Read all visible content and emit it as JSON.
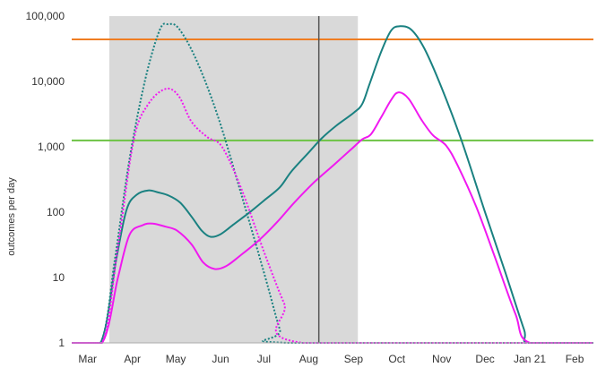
{
  "chart_data": {
    "type": "line",
    "title": "",
    "xlabel": "",
    "ylabel": "outcomes per day",
    "yscale": "log",
    "ylim": [
      1,
      100000
    ],
    "y_ticks": [
      {
        "value": 1,
        "label": "1"
      },
      {
        "value": 10,
        "label": "10"
      },
      {
        "value": 100,
        "label": "100"
      },
      {
        "value": 1000,
        "label": "1,000"
      },
      {
        "value": 10000,
        "label": "10,000"
      },
      {
        "value": 100000,
        "label": "100,000"
      }
    ],
    "x_ticks": [
      {
        "date": "2020-03-01",
        "label": "Mar"
      },
      {
        "date": "2020-04-01",
        "label": "Apr"
      },
      {
        "date": "2020-05-01",
        "label": "May"
      },
      {
        "date": "2020-06-01",
        "label": "Jun"
      },
      {
        "date": "2020-07-01",
        "label": "Jul"
      },
      {
        "date": "2020-08-01",
        "label": "Aug"
      },
      {
        "date": "2020-09-01",
        "label": "Sep"
      },
      {
        "date": "2020-10-01",
        "label": "Oct"
      },
      {
        "date": "2020-11-01",
        "label": "Nov"
      },
      {
        "date": "2020-12-01",
        "label": "Dec"
      },
      {
        "date": "2021-01-01",
        "label": "Jan 21"
      },
      {
        "date": "2021-02-01",
        "label": "Feb"
      }
    ],
    "xlim": [
      "2020-02-19",
      "2021-02-14"
    ],
    "grid": false,
    "shaded_region": {
      "start": "2020-03-16",
      "end": "2020-09-04",
      "color": "#d9d9d9"
    },
    "vline": {
      "date": "2020-08-08",
      "color": "#555555"
    },
    "hlines": [
      {
        "value": 44000,
        "color": "#ef7d22"
      },
      {
        "value": 1250,
        "color": "#6dc344"
      }
    ],
    "series": [
      {
        "color": "#1a8181",
        "dash": "solid",
        "points": [
          [
            "2020-02-19",
            1
          ],
          [
            "2020-03-10",
            1
          ],
          [
            "2020-03-21",
            20
          ],
          [
            "2020-03-28",
            110
          ],
          [
            "2020-04-04",
            185
          ],
          [
            "2020-04-12",
            215
          ],
          [
            "2020-04-19",
            200
          ],
          [
            "2020-04-26",
            180
          ],
          [
            "2020-05-04",
            140
          ],
          [
            "2020-05-12",
            85
          ],
          [
            "2020-05-19",
            52
          ],
          [
            "2020-05-25",
            42
          ],
          [
            "2020-06-01",
            46
          ],
          [
            "2020-06-10",
            65
          ],
          [
            "2020-06-20",
            95
          ],
          [
            "2020-07-01",
            150
          ],
          [
            "2020-07-12",
            240
          ],
          [
            "2020-07-20",
            420
          ],
          [
            "2020-08-01",
            820
          ],
          [
            "2020-08-10",
            1350
          ],
          [
            "2020-08-20",
            2100
          ],
          [
            "2020-09-01",
            3300
          ],
          [
            "2020-09-07",
            4500
          ],
          [
            "2020-09-12",
            9000
          ],
          [
            "2020-09-20",
            28000
          ],
          [
            "2020-09-27",
            60000
          ],
          [
            "2020-10-03",
            70000
          ],
          [
            "2020-10-11",
            62000
          ],
          [
            "2020-10-20",
            32000
          ],
          [
            "2020-11-01",
            8000
          ],
          [
            "2020-11-15",
            1200
          ],
          [
            "2020-12-01",
            100
          ],
          [
            "2020-12-15",
            12
          ],
          [
            "2020-12-28",
            1.6
          ],
          [
            "2021-01-01",
            1
          ],
          [
            "2021-02-14",
            1
          ]
        ]
      },
      {
        "color": "#f019f0",
        "dash": "solid",
        "points": [
          [
            "2020-02-19",
            1
          ],
          [
            "2020-03-11",
            1
          ],
          [
            "2020-03-22",
            10
          ],
          [
            "2020-03-30",
            45
          ],
          [
            "2020-04-08",
            63
          ],
          [
            "2020-04-15",
            67
          ],
          [
            "2020-04-24",
            60
          ],
          [
            "2020-05-02",
            52
          ],
          [
            "2020-05-12",
            32
          ],
          [
            "2020-05-20",
            17
          ],
          [
            "2020-05-28",
            13.5
          ],
          [
            "2020-06-05",
            15
          ],
          [
            "2020-06-15",
            22
          ],
          [
            "2020-06-28",
            38
          ],
          [
            "2020-07-10",
            70
          ],
          [
            "2020-07-22",
            140
          ],
          [
            "2020-08-05",
            290
          ],
          [
            "2020-08-18",
            520
          ],
          [
            "2020-08-30",
            900
          ],
          [
            "2020-09-07",
            1300
          ],
          [
            "2020-09-13",
            1550
          ],
          [
            "2020-09-20",
            2800
          ],
          [
            "2020-09-27",
            5200
          ],
          [
            "2020-10-02",
            6800
          ],
          [
            "2020-10-09",
            5500
          ],
          [
            "2020-10-18",
            2600
          ],
          [
            "2020-10-26",
            1500
          ],
          [
            "2020-11-04",
            1050
          ],
          [
            "2020-11-12",
            520
          ],
          [
            "2020-11-25",
            120
          ],
          [
            "2020-12-08",
            20
          ],
          [
            "2020-12-22",
            2.8
          ],
          [
            "2021-01-01",
            1
          ],
          [
            "2021-02-14",
            1
          ]
        ]
      },
      {
        "color": "#1a8181",
        "dash": "dotted",
        "points": [
          [
            "2020-02-19",
            1
          ],
          [
            "2020-03-10",
            1
          ],
          [
            "2020-03-20",
            20
          ],
          [
            "2020-03-30",
            650
          ],
          [
            "2020-04-10",
            11000
          ],
          [
            "2020-04-20",
            62000
          ],
          [
            "2020-04-26",
            75000
          ],
          [
            "2020-05-03",
            65000
          ],
          [
            "2020-05-15",
            22000
          ],
          [
            "2020-05-30",
            3000
          ],
          [
            "2020-06-15",
            200
          ],
          [
            "2020-07-01",
            12
          ],
          [
            "2020-07-12",
            1.6
          ],
          [
            "2020-07-17",
            1
          ],
          [
            "2021-02-14",
            1
          ]
        ]
      },
      {
        "color": "#f019f0",
        "dash": "dotted",
        "points": [
          [
            "2020-02-19",
            1
          ],
          [
            "2020-03-11",
            1
          ],
          [
            "2020-03-22",
            30
          ],
          [
            "2020-04-02",
            1300
          ],
          [
            "2020-04-12",
            4500
          ],
          [
            "2020-04-24",
            7700
          ],
          [
            "2020-05-03",
            6000
          ],
          [
            "2020-05-12",
            2400
          ],
          [
            "2020-05-23",
            1400
          ],
          [
            "2020-06-02",
            1000
          ],
          [
            "2020-06-15",
            240
          ],
          [
            "2020-07-01",
            25
          ],
          [
            "2020-07-15",
            4
          ],
          [
            "2020-07-28",
            1
          ],
          [
            "2021-02-14",
            1
          ]
        ]
      }
    ]
  }
}
